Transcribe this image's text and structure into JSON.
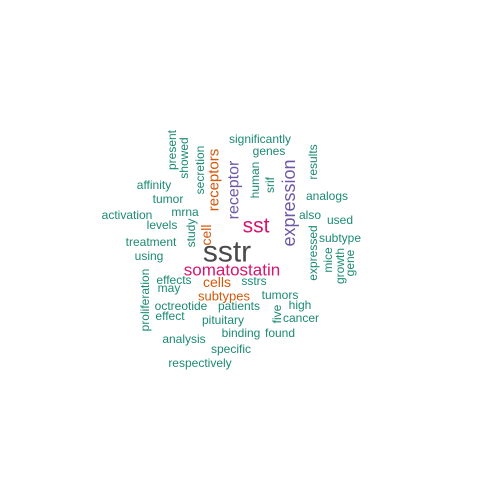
{
  "wordcloud": {
    "colors": {
      "top": "#4a4a4a",
      "magenta": "#d6156f",
      "purple": "#6f58a6",
      "orange": "#d4570a",
      "teal": "#1b8a73"
    },
    "words": [
      {
        "text": "sstr",
        "color": "top"
      },
      {
        "text": "sst",
        "color": "magenta"
      },
      {
        "text": "somatostatin",
        "color": "magenta"
      },
      {
        "text": "expression",
        "color": "purple"
      },
      {
        "text": "receptor",
        "color": "purple"
      },
      {
        "text": "receptors",
        "color": "orange"
      },
      {
        "text": "cells",
        "color": "orange"
      },
      {
        "text": "cell",
        "color": "orange"
      },
      {
        "text": "subtypes",
        "color": "orange"
      },
      {
        "text": "significantly",
        "color": "teal"
      },
      {
        "text": "genes",
        "color": "teal"
      },
      {
        "text": "present",
        "color": "teal"
      },
      {
        "text": "showed",
        "color": "teal"
      },
      {
        "text": "secretion",
        "color": "teal"
      },
      {
        "text": "results",
        "color": "teal"
      },
      {
        "text": "affinity",
        "color": "teal"
      },
      {
        "text": "tumor",
        "color": "teal"
      },
      {
        "text": "human",
        "color": "teal"
      },
      {
        "text": "srif",
        "color": "teal"
      },
      {
        "text": "analogs",
        "color": "teal"
      },
      {
        "text": "activation",
        "color": "teal"
      },
      {
        "text": "mrna",
        "color": "teal"
      },
      {
        "text": "levels",
        "color": "teal"
      },
      {
        "text": "study",
        "color": "teal"
      },
      {
        "text": "also",
        "color": "teal"
      },
      {
        "text": "used",
        "color": "teal"
      },
      {
        "text": "treatment",
        "color": "teal"
      },
      {
        "text": "using",
        "color": "teal"
      },
      {
        "text": "subtype",
        "color": "teal"
      },
      {
        "text": "expressed",
        "color": "teal"
      },
      {
        "text": "mice",
        "color": "teal"
      },
      {
        "text": "growth",
        "color": "teal"
      },
      {
        "text": "gene",
        "color": "teal"
      },
      {
        "text": "effects",
        "color": "teal"
      },
      {
        "text": "may",
        "color": "teal"
      },
      {
        "text": "sstrs",
        "color": "teal"
      },
      {
        "text": "tumors",
        "color": "teal"
      },
      {
        "text": "proliferation",
        "color": "teal"
      },
      {
        "text": "octreotide",
        "color": "teal"
      },
      {
        "text": "patients",
        "color": "teal"
      },
      {
        "text": "high",
        "color": "teal"
      },
      {
        "text": "effect",
        "color": "teal"
      },
      {
        "text": "pituitary",
        "color": "teal"
      },
      {
        "text": "five",
        "color": "teal"
      },
      {
        "text": "cancer",
        "color": "teal"
      },
      {
        "text": "binding",
        "color": "teal"
      },
      {
        "text": "found",
        "color": "teal"
      },
      {
        "text": "analysis",
        "color": "teal"
      },
      {
        "text": "specific",
        "color": "teal"
      },
      {
        "text": "respectively",
        "color": "teal"
      }
    ]
  }
}
